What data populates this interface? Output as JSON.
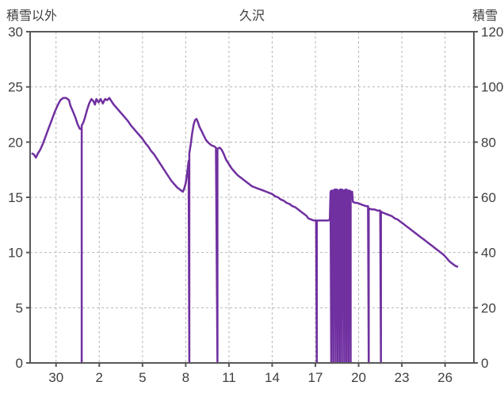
{
  "title": "久沢",
  "left_axis": {
    "label": "積雪以外",
    "ticks": [
      0,
      5,
      10,
      15,
      20,
      25,
      30
    ],
    "range": [
      0,
      30
    ]
  },
  "right_axis": {
    "label": "積雪",
    "ticks": [
      0,
      20,
      40,
      60,
      80,
      100,
      120
    ],
    "range": [
      0,
      120
    ]
  },
  "colors": {
    "line": "#7030A0",
    "grid": "#b7b7b7",
    "border": "#595959",
    "text": "#3f3f3f",
    "background": "#ffffff"
  },
  "chart_data": {
    "type": "line",
    "title": "久沢",
    "x_domain": [
      28.2,
      59.0
    ],
    "y_left_domain": [
      0,
      30
    ],
    "y_right_domain": [
      0,
      120
    ],
    "x_tick_values": [
      30,
      33,
      36,
      39,
      42,
      45,
      48,
      51,
      54,
      57
    ],
    "x_tick_labels": [
      "30",
      "2",
      "5",
      "8",
      "11",
      "14",
      "17",
      "20",
      "23",
      "26"
    ],
    "grid": "dashed",
    "legend": "none",
    "series": [
      {
        "name": "積雪",
        "color": "#7030A0",
        "points": [
          [
            28.3,
            19.0
          ],
          [
            28.45,
            18.9
          ],
          [
            28.6,
            18.6
          ],
          [
            28.75,
            19.0
          ],
          [
            28.9,
            19.3
          ],
          [
            29.1,
            19.9
          ],
          [
            29.3,
            20.6
          ],
          [
            29.5,
            21.3
          ],
          [
            29.7,
            22.0
          ],
          [
            29.9,
            22.7
          ],
          [
            30.1,
            23.3
          ],
          [
            30.3,
            23.8
          ],
          [
            30.5,
            24.0
          ],
          [
            30.7,
            24.0
          ],
          [
            30.9,
            23.8
          ],
          [
            31.0,
            23.3
          ],
          [
            31.2,
            22.7
          ],
          [
            31.35,
            22.2
          ],
          [
            31.5,
            21.6
          ],
          [
            31.65,
            21.2
          ],
          [
            31.78,
            21.2
          ],
          [
            31.78,
            0
          ],
          [
            31.78,
            21.5
          ],
          [
            31.9,
            21.8
          ],
          [
            32.0,
            22.2
          ],
          [
            32.15,
            22.9
          ],
          [
            32.3,
            23.5
          ],
          [
            32.45,
            23.9
          ],
          [
            32.6,
            23.7
          ],
          [
            32.7,
            23.4
          ],
          [
            32.8,
            23.9
          ],
          [
            32.95,
            23.6
          ],
          [
            33.1,
            23.9
          ],
          [
            33.25,
            23.5
          ],
          [
            33.4,
            23.9
          ],
          [
            33.55,
            23.8
          ],
          [
            33.7,
            24.0
          ],
          [
            33.85,
            23.7
          ],
          [
            34.0,
            23.4
          ],
          [
            34.2,
            23.1
          ],
          [
            34.4,
            22.8
          ],
          [
            34.6,
            22.5
          ],
          [
            34.8,
            22.2
          ],
          [
            35.0,
            21.9
          ],
          [
            35.2,
            21.5
          ],
          [
            35.4,
            21.2
          ],
          [
            35.6,
            20.9
          ],
          [
            35.8,
            20.6
          ],
          [
            36.0,
            20.3
          ],
          [
            36.2,
            19.9
          ],
          [
            36.4,
            19.6
          ],
          [
            36.6,
            19.2
          ],
          [
            36.8,
            18.9
          ],
          [
            37.0,
            18.5
          ],
          [
            37.2,
            18.1
          ],
          [
            37.4,
            17.7
          ],
          [
            37.6,
            17.3
          ],
          [
            37.8,
            16.9
          ],
          [
            38.0,
            16.5
          ],
          [
            38.2,
            16.2
          ],
          [
            38.4,
            15.9
          ],
          [
            38.6,
            15.7
          ],
          [
            38.8,
            15.5
          ],
          [
            38.9,
            15.8
          ],
          [
            39.0,
            16.3
          ],
          [
            39.1,
            17.2
          ],
          [
            39.2,
            18.3
          ],
          [
            39.25,
            0
          ],
          [
            39.25,
            19.0
          ],
          [
            39.35,
            19.8
          ],
          [
            39.45,
            20.8
          ],
          [
            39.55,
            21.6
          ],
          [
            39.65,
            22.0
          ],
          [
            39.75,
            22.1
          ],
          [
            39.85,
            21.8
          ],
          [
            39.95,
            21.4
          ],
          [
            40.1,
            21.0
          ],
          [
            40.25,
            20.6
          ],
          [
            40.4,
            20.2
          ],
          [
            40.6,
            19.9
          ],
          [
            40.8,
            19.7
          ],
          [
            41.0,
            19.6
          ],
          [
            41.1,
            19.5
          ],
          [
            41.2,
            0
          ],
          [
            41.2,
            19.4
          ],
          [
            41.35,
            19.5
          ],
          [
            41.5,
            19.3
          ],
          [
            41.65,
            18.9
          ],
          [
            41.8,
            18.4
          ],
          [
            42.0,
            18.0
          ],
          [
            42.2,
            17.6
          ],
          [
            42.4,
            17.3
          ],
          [
            42.6,
            17.0
          ],
          [
            42.8,
            16.8
          ],
          [
            43.0,
            16.6
          ],
          [
            43.2,
            16.4
          ],
          [
            43.4,
            16.2
          ],
          [
            43.6,
            16.0
          ],
          [
            43.8,
            15.9
          ],
          [
            44.0,
            15.8
          ],
          [
            44.2,
            15.7
          ],
          [
            44.4,
            15.6
          ],
          [
            44.6,
            15.5
          ],
          [
            44.8,
            15.4
          ],
          [
            45.0,
            15.3
          ],
          [
            45.2,
            15.1
          ],
          [
            45.4,
            15.0
          ],
          [
            45.6,
            14.8
          ],
          [
            45.8,
            14.7
          ],
          [
            46.0,
            14.5
          ],
          [
            46.2,
            14.4
          ],
          [
            46.4,
            14.2
          ],
          [
            46.6,
            14.1
          ],
          [
            46.8,
            13.9
          ],
          [
            47.0,
            13.7
          ],
          [
            47.2,
            13.5
          ],
          [
            47.4,
            13.3
          ],
          [
            47.5,
            13.1
          ],
          [
            47.7,
            13.0
          ],
          [
            47.9,
            12.9
          ],
          [
            48.05,
            12.9
          ],
          [
            48.1,
            0
          ],
          [
            48.1,
            12.9
          ],
          [
            48.3,
            12.9
          ],
          [
            48.6,
            12.9
          ],
          [
            48.9,
            12.9
          ],
          [
            49.0,
            13.0
          ],
          [
            49.05,
            15.5
          ],
          [
            49.1,
            0
          ],
          [
            49.1,
            15.6
          ],
          [
            49.2,
            15.6
          ],
          [
            49.25,
            0
          ],
          [
            49.25,
            15.6
          ],
          [
            49.35,
            15.7
          ],
          [
            49.4,
            0
          ],
          [
            49.4,
            15.7
          ],
          [
            49.5,
            15.7
          ],
          [
            49.55,
            0
          ],
          [
            49.55,
            15.6
          ],
          [
            49.65,
            15.6
          ],
          [
            49.7,
            0
          ],
          [
            49.7,
            15.7
          ],
          [
            49.8,
            15.7
          ],
          [
            49.85,
            0
          ],
          [
            49.85,
            15.7
          ],
          [
            49.95,
            15.6
          ],
          [
            50.0,
            0
          ],
          [
            50.0,
            15.6
          ],
          [
            50.1,
            15.7
          ],
          [
            50.15,
            0
          ],
          [
            50.15,
            15.7
          ],
          [
            50.25,
            15.6
          ],
          [
            50.3,
            0
          ],
          [
            50.3,
            15.6
          ],
          [
            50.4,
            15.6
          ],
          [
            50.45,
            0
          ],
          [
            50.45,
            15.5
          ],
          [
            50.55,
            15.5
          ],
          [
            50.6,
            14.6
          ],
          [
            50.75,
            14.5
          ],
          [
            50.9,
            14.5
          ],
          [
            51.1,
            14.4
          ],
          [
            51.3,
            14.3
          ],
          [
            51.5,
            14.2
          ],
          [
            51.65,
            14.2
          ],
          [
            51.7,
            0
          ],
          [
            51.7,
            14.0
          ],
          [
            51.9,
            13.9
          ],
          [
            52.1,
            13.9
          ],
          [
            52.3,
            13.8
          ],
          [
            52.5,
            13.8
          ],
          [
            52.55,
            0
          ],
          [
            52.55,
            13.7
          ],
          [
            52.7,
            13.6
          ],
          [
            52.9,
            13.5
          ],
          [
            53.1,
            13.4
          ],
          [
            53.3,
            13.3
          ],
          [
            53.5,
            13.1
          ],
          [
            53.7,
            13.0
          ],
          [
            53.9,
            12.8
          ],
          [
            54.1,
            12.6
          ],
          [
            54.3,
            12.4
          ],
          [
            54.5,
            12.2
          ],
          [
            54.7,
            12.0
          ],
          [
            54.9,
            11.8
          ],
          [
            55.1,
            11.6
          ],
          [
            55.3,
            11.4
          ],
          [
            55.5,
            11.2
          ],
          [
            55.7,
            11.0
          ],
          [
            55.9,
            10.8
          ],
          [
            56.1,
            10.6
          ],
          [
            56.3,
            10.4
          ],
          [
            56.5,
            10.2
          ],
          [
            56.7,
            10.0
          ],
          [
            56.9,
            9.8
          ],
          [
            57.1,
            9.5
          ],
          [
            57.3,
            9.2
          ],
          [
            57.5,
            9.0
          ],
          [
            57.7,
            8.8
          ],
          [
            57.9,
            8.7
          ]
        ]
      }
    ]
  }
}
